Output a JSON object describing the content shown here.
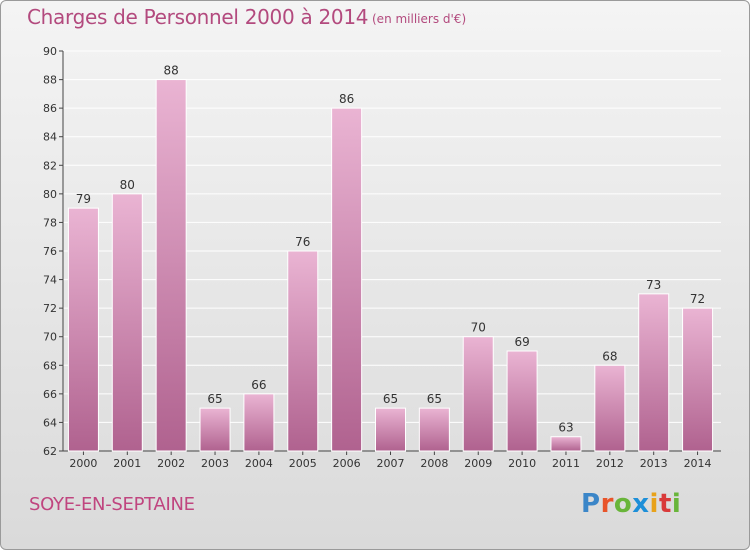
{
  "colors": {
    "bar_light": "#eab4d3",
    "bar_dark": "#b0628f",
    "title": "#b34a7e",
    "place": "#c0457f",
    "grid": "#ffffff"
  },
  "header": {
    "title": "Charges de Personnel 2000 à 2014",
    "unit": "(en milliers d'€)"
  },
  "footer": {
    "place": "SOYE-EN-SEPTAINE",
    "logo": "Proxiti",
    "logo_colors": [
      "#3b86c8",
      "#e8542a",
      "#69b53a",
      "#1d8fd8",
      "#e8a21a",
      "#d93a3a",
      "#69b53a"
    ]
  },
  "chart_data": {
    "type": "bar",
    "title": "Charges de Personnel 2000 à 2014",
    "subtitle": "(en milliers d'€)",
    "categories": [
      "2000",
      "2001",
      "2002",
      "2003",
      "2004",
      "2005",
      "2006",
      "2007",
      "2008",
      "2009",
      "2010",
      "2011",
      "2012",
      "2013",
      "2014"
    ],
    "values": [
      79,
      80,
      88,
      65,
      66,
      76,
      86,
      65,
      65,
      70,
      69,
      63,
      68,
      73,
      72
    ],
    "ylim": [
      62,
      90
    ],
    "yticks": [
      62,
      64,
      66,
      68,
      70,
      72,
      74,
      76,
      78,
      80,
      82,
      84,
      86,
      88,
      90
    ],
    "grid": true,
    "xlabel": "",
    "ylabel": ""
  }
}
